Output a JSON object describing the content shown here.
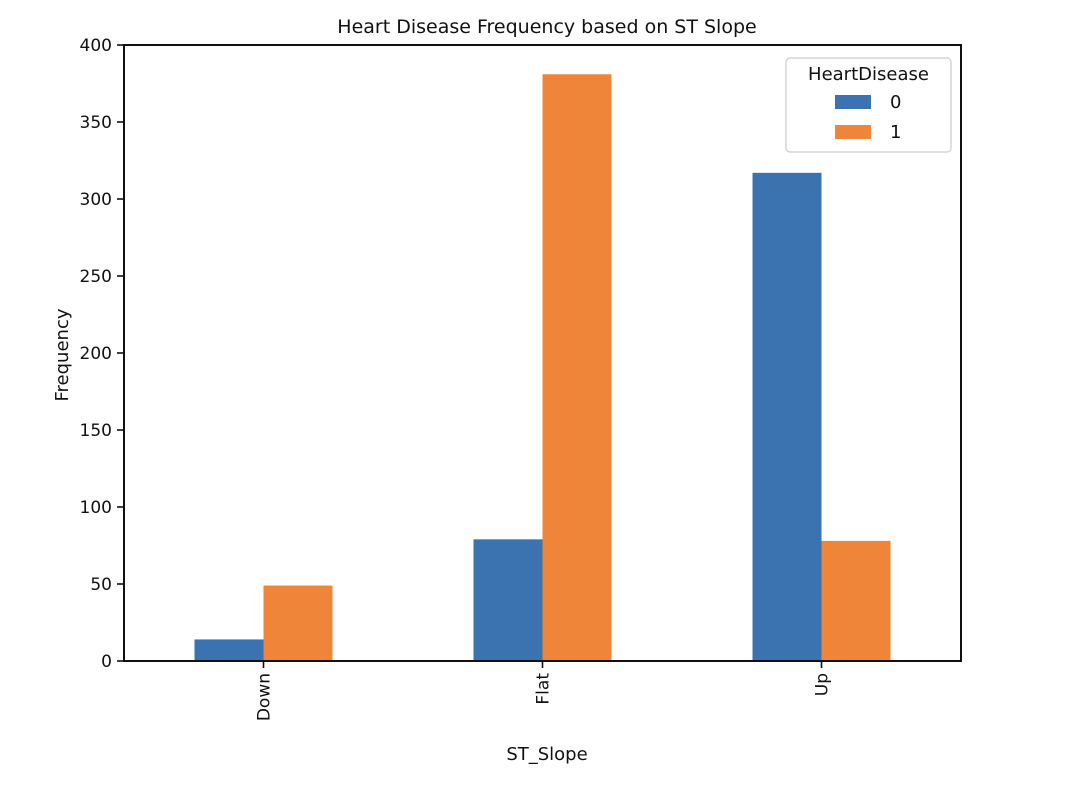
{
  "chart_data": {
    "type": "bar",
    "title": "Heart Disease Frequency based on ST Slope",
    "xlabel": "ST_Slope",
    "ylabel": "Frequency",
    "categories": [
      "Down",
      "Flat",
      "Up"
    ],
    "series": [
      {
        "name": "0",
        "values": [
          14,
          79,
          317
        ],
        "color": "#3a73b0"
      },
      {
        "name": "1",
        "values": [
          49,
          381,
          78
        ],
        "color": "#ee8538"
      }
    ],
    "ylim": [
      0,
      400
    ],
    "yticks": [
      0,
      50,
      100,
      150,
      200,
      250,
      300,
      350,
      400
    ],
    "ytick_labels": [
      "0",
      "50",
      "100",
      "150",
      "200",
      "250",
      "300",
      "350",
      "400"
    ],
    "grid": false,
    "legend": {
      "title": "HeartDisease",
      "placement": "top-right"
    },
    "xtick_rotation": "vertical"
  }
}
